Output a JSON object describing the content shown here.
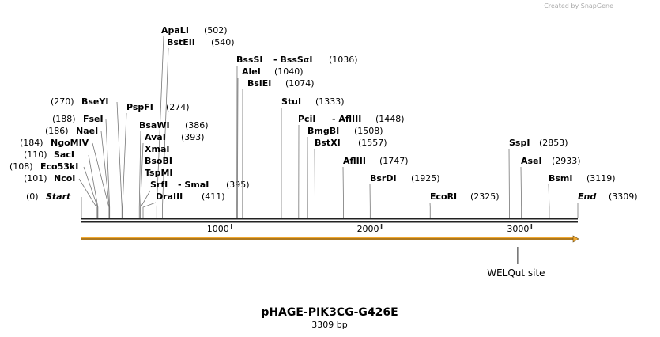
{
  "credit": "Created by SnapGene",
  "map": {
    "title": "pHAGE-PIK3CG-G426E",
    "length_label": "3309 bp",
    "length": 3309,
    "ticks": [
      1000,
      2000,
      3000
    ],
    "enzymes": [
      {
        "name": "Start",
        "position": 0,
        "label": "(0)"
      },
      {
        "name": "NcoI",
        "position": 101,
        "label": "(101)"
      },
      {
        "name": "Eco53kI",
        "position": 108,
        "label": "(108)"
      },
      {
        "name": "SacI",
        "position": 110,
        "label": "(110)"
      },
      {
        "name": "NgoMIV",
        "position": 184,
        "label": "(184)"
      },
      {
        "name": "NaeI",
        "position": 186,
        "label": "(186)"
      },
      {
        "name": "FseI",
        "position": 188,
        "label": "(188)"
      },
      {
        "name": "BseYI",
        "position": 270,
        "label": "(270)"
      },
      {
        "name": "PspFI",
        "position": 274,
        "label": "(274)"
      },
      {
        "name": "ApaLI",
        "position": 502,
        "label": "(502)"
      },
      {
        "name": "BstEII",
        "position": 540,
        "label": "(540)"
      },
      {
        "name": "BsaWI",
        "position": 386,
        "label": "(386)"
      },
      {
        "name": "AvaI",
        "position": 393,
        "label": "(393)"
      },
      {
        "name": "XmaI"
      },
      {
        "name": "BsoBI"
      },
      {
        "name": "TspMI"
      },
      {
        "name": "SrfI",
        "alias": "- SmaI",
        "position": 395,
        "label": "(395)"
      },
      {
        "name": "DraIII",
        "position": 411,
        "label": "(411)"
      },
      {
        "name": "BssSI",
        "alias": "- BssSαI",
        "position": 1036,
        "label": "(1036)"
      },
      {
        "name": "AleI",
        "position": 1040,
        "label": "(1040)"
      },
      {
        "name": "BsiEI",
        "position": 1074,
        "label": "(1074)"
      },
      {
        "name": "StuI",
        "position": 1333,
        "label": "(1333)"
      },
      {
        "name": "PciI",
        "alias": "- AflIII",
        "position": 1448,
        "label": "(1448)"
      },
      {
        "name": "BmgBI",
        "position": 1508,
        "label": "(1508)"
      },
      {
        "name": "BstXI",
        "position": 1557,
        "label": "(1557)"
      },
      {
        "name": "AflIII",
        "position": 1747,
        "label": "(1747)"
      },
      {
        "name": "BsrDI",
        "position": 1925,
        "label": "(1925)"
      },
      {
        "name": "EcoRI",
        "position": 2325,
        "label": "(2325)"
      },
      {
        "name": "SspI",
        "position": 2853,
        "label": "(2853)"
      },
      {
        "name": "AseI",
        "position": 2933,
        "label": "(2933)"
      },
      {
        "name": "BsmI",
        "position": 3119,
        "label": "(3119)"
      },
      {
        "name": "End",
        "position": 3309,
        "label": "(3309)"
      }
    ],
    "feature": {
      "name": "WELQut site",
      "position": 2908
    }
  }
}
